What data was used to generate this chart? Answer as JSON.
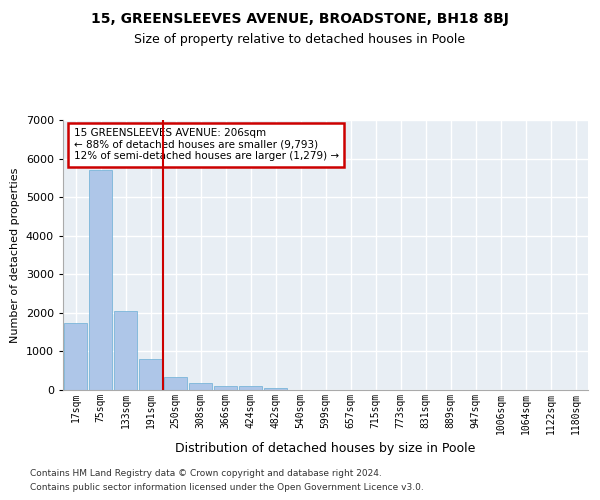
{
  "title": "15, GREENSLEEVES AVENUE, BROADSTONE, BH18 8BJ",
  "subtitle": "Size of property relative to detached houses in Poole",
  "xlabel": "Distribution of detached houses by size in Poole",
  "ylabel": "Number of detached properties",
  "bin_labels": [
    "17sqm",
    "75sqm",
    "133sqm",
    "191sqm",
    "250sqm",
    "308sqm",
    "366sqm",
    "424sqm",
    "482sqm",
    "540sqm",
    "599sqm",
    "657sqm",
    "715sqm",
    "773sqm",
    "831sqm",
    "889sqm",
    "947sqm",
    "1006sqm",
    "1064sqm",
    "1122sqm",
    "1180sqm"
  ],
  "bar_values": [
    1750,
    5700,
    2050,
    800,
    350,
    175,
    100,
    100,
    50,
    0,
    0,
    0,
    0,
    0,
    0,
    0,
    0,
    0,
    0,
    0,
    0
  ],
  "bar_color": "#aec6e8",
  "bar_edgecolor": "#6aaed6",
  "background_color": "#e8eef4",
  "grid_color": "#ffffff",
  "vline_x": 3.5,
  "vline_color": "#cc0000",
  "annotation_text": "15 GREENSLEEVES AVENUE: 206sqm\n← 88% of detached houses are smaller (9,793)\n12% of semi-detached houses are larger (1,279) →",
  "annotation_box_color": "#cc0000",
  "ylim": [
    0,
    7000
  ],
  "yticks": [
    0,
    1000,
    2000,
    3000,
    4000,
    5000,
    6000,
    7000
  ],
  "footer_line1": "Contains HM Land Registry data © Crown copyright and database right 2024.",
  "footer_line2": "Contains public sector information licensed under the Open Government Licence v3.0."
}
